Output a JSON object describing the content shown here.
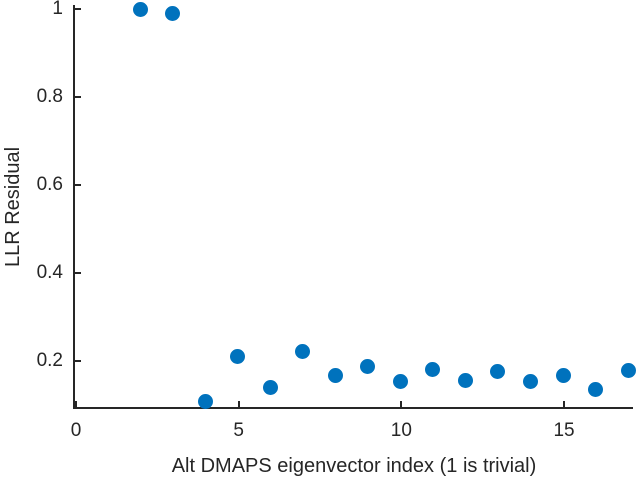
{
  "chart_data": {
    "type": "scatter",
    "title": "",
    "xlabel": "Alt DMAPS eigenvector index (1 is trivial)",
    "ylabel": "LLR Residual",
    "x": [
      2,
      3,
      4,
      5,
      6,
      7,
      8,
      9,
      10,
      11,
      12,
      13,
      14,
      15,
      16,
      17
    ],
    "y": [
      1.0,
      0.99,
      0.107,
      0.21,
      0.14,
      0.221,
      0.166,
      0.188,
      0.152,
      0.18,
      0.156,
      0.176,
      0.152,
      0.167,
      0.135,
      0.177
    ],
    "xlim": [
      0,
      17.15
    ],
    "ylim": [
      0.095,
      1.005
    ],
    "xticks": [
      0,
      5,
      10,
      15
    ],
    "xtick_labels": [
      "0",
      "5",
      "10",
      "15"
    ],
    "yticks": [
      0.2,
      0.4,
      0.6,
      0.8,
      1
    ],
    "ytick_labels": [
      "0.2",
      "0.4",
      "0.6",
      "0.8",
      "1"
    ],
    "grid": false,
    "legend": null,
    "marker": "filled-circle",
    "colors": {
      "marker": "#0072BD",
      "axis": "#262626",
      "text": "#262626",
      "background": "#ffffff"
    }
  }
}
